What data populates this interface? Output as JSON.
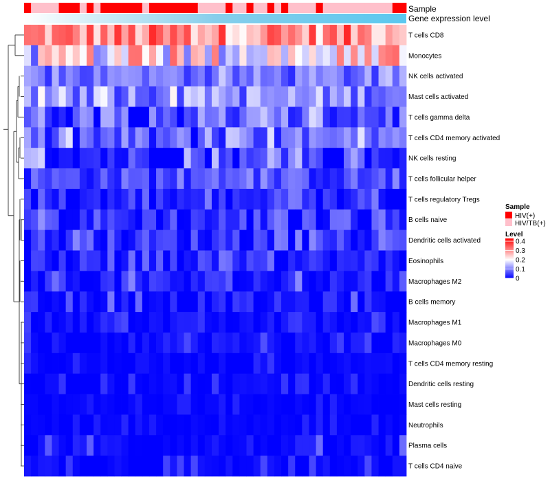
{
  "chart_data": {
    "type": "heatmap",
    "annotations": {
      "sample_label": "Sample",
      "expression_label": "Gene expression level",
      "sample_track": [
        1,
        0,
        0,
        0,
        0,
        1,
        1,
        1,
        0,
        1,
        0,
        1,
        1,
        1,
        1,
        1,
        1,
        0,
        1,
        1,
        1,
        1,
        1,
        1,
        1,
        0,
        0,
        0,
        0,
        1,
        0,
        0,
        1,
        0,
        0,
        1,
        0,
        1,
        0,
        0,
        0,
        0,
        1,
        0,
        0,
        0,
        0,
        0,
        0,
        0,
        0,
        0,
        0,
        1,
        1
      ],
      "expression_gradient": [
        "#ffffff",
        "#87ceeb",
        "#5bc8ef"
      ]
    },
    "rows": [
      "T cells CD8",
      "Monocytes",
      "NK cells activated",
      "Mast cells activated",
      "T cells gamma delta",
      "T cells CD4 memory activated",
      "NK cells resting",
      "T cells follicular helper",
      "T cells regulatory  Tregs",
      "B cells naive",
      "Dendritic cells activated",
      "Eosinophils",
      "Macrophages M2",
      "B cells memory",
      "Macrophages M1",
      "Macrophages M0",
      "T cells CD4 memory resting",
      "Dendritic cells resting",
      "Mast cells resting",
      "Neutrophils",
      "Plasma cells",
      "T cells CD4 naive"
    ],
    "n_columns": 55,
    "row_profiles": [
      {
        "base": 0.3,
        "amp": 0.12,
        "hi": 0.43
      },
      {
        "base": 0.2,
        "amp": 0.17,
        "hi": 0.4
      },
      {
        "base": 0.085,
        "amp": 0.07,
        "hi": 0.16
      },
      {
        "base": 0.11,
        "amp": 0.09,
        "hi": 0.22
      },
      {
        "base": 0.07,
        "amp": 0.1,
        "hi": 0.18
      },
      {
        "base": 0.06,
        "amp": 0.09,
        "hi": 0.18
      },
      {
        "base": 0.035,
        "amp": 0.08,
        "hi": 0.18
      },
      {
        "base": 0.055,
        "amp": 0.06,
        "hi": 0.12
      },
      {
        "base": 0.02,
        "amp": 0.05,
        "hi": 0.1
      },
      {
        "base": 0.035,
        "amp": 0.07,
        "hi": 0.14
      },
      {
        "base": 0.035,
        "amp": 0.06,
        "hi": 0.11
      },
      {
        "base": 0.02,
        "amp": 0.05,
        "hi": 0.1
      },
      {
        "base": 0.02,
        "amp": 0.05,
        "hi": 0.12
      },
      {
        "base": 0.015,
        "amp": 0.04,
        "hi": 0.1
      },
      {
        "base": 0.008,
        "amp": 0.025,
        "hi": 0.06
      },
      {
        "base": 0.008,
        "amp": 0.03,
        "hi": 0.07
      },
      {
        "base": 0.004,
        "amp": 0.015,
        "hi": 0.05
      },
      {
        "base": 0.004,
        "amp": 0.015,
        "hi": 0.05
      },
      {
        "base": 0.002,
        "amp": 0.008,
        "hi": 0.03
      },
      {
        "base": 0.002,
        "amp": 0.008,
        "hi": 0.03
      },
      {
        "base": 0.006,
        "amp": 0.03,
        "hi": 0.09
      },
      {
        "base": 0.004,
        "amp": 0.02,
        "hi": 0.06
      }
    ],
    "value_range": [
      0,
      0.43
    ],
    "colormap": {
      "low": "#0000ff",
      "mid": "#ffffff",
      "high": "#ff0000",
      "mid_value": 0.2
    },
    "legend": {
      "sample_title": "Sample",
      "sample_entries": [
        {
          "label": "HIV(+)",
          "color": "#ff0000"
        },
        {
          "label": "HIV/TB(+)",
          "color": "#ffc0cb"
        }
      ],
      "level_title": "Level",
      "level_ticks": [
        {
          "label": "0.4",
          "value": 0.4
        },
        {
          "label": "0.3",
          "value": 0.3
        },
        {
          "label": "0.2",
          "value": 0.2
        },
        {
          "label": "0.1",
          "value": 0.1
        },
        {
          "label": "0",
          "value": 0.0
        }
      ]
    }
  }
}
